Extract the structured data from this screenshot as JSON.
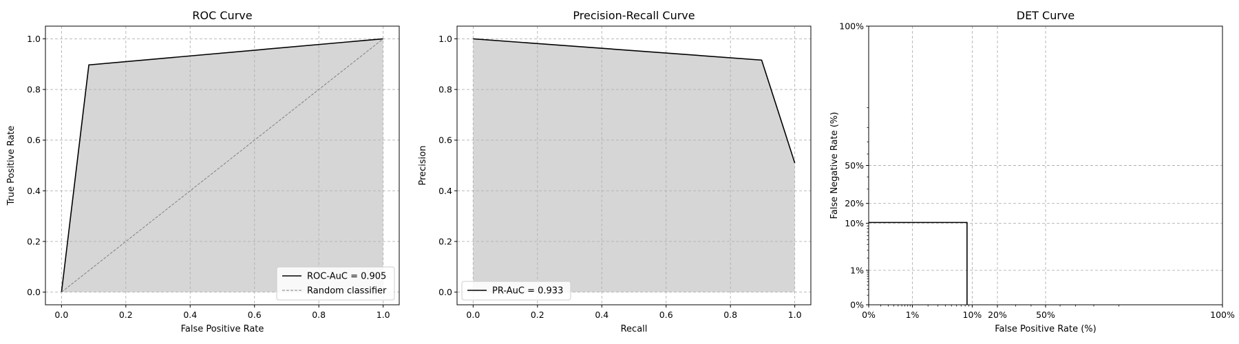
{
  "chart_data": [
    {
      "type": "line",
      "title": "ROC Curve",
      "xlabel": "False Positive Rate",
      "ylabel": "True Positive Rate",
      "xlim": [
        -0.05,
        1.05
      ],
      "ylim": [
        -0.05,
        1.05
      ],
      "xticks": [
        0.0,
        0.2,
        0.4,
        0.6,
        0.8,
        1.0
      ],
      "yticks": [
        0.0,
        0.2,
        0.4,
        0.6,
        0.8,
        1.0
      ],
      "xticklabels": [
        "0.0",
        "0.2",
        "0.4",
        "0.6",
        "0.8",
        "1.0"
      ],
      "yticklabels": [
        "0.0",
        "0.2",
        "0.4",
        "0.6",
        "0.8",
        "1.0"
      ],
      "grid": true,
      "legend_position": "lower-right",
      "fill_under": true,
      "series": [
        {
          "name": "ROC-AuC = 0.905",
          "style": "solid",
          "color": "#000000",
          "x": [
            0.0,
            0.085,
            1.0
          ],
          "y": [
            0.0,
            0.897,
            1.0
          ]
        },
        {
          "name": "Random classifier",
          "style": "dashed",
          "color": "#808080",
          "x": [
            0.0,
            1.0
          ],
          "y": [
            0.0,
            1.0
          ]
        }
      ]
    },
    {
      "type": "line",
      "title": "Precision-Recall Curve",
      "xlabel": "Recall",
      "ylabel": "Precision",
      "xlim": [
        -0.05,
        1.05
      ],
      "ylim": [
        -0.05,
        1.05
      ],
      "xticks": [
        0.0,
        0.2,
        0.4,
        0.6,
        0.8,
        1.0
      ],
      "yticks": [
        0.0,
        0.2,
        0.4,
        0.6,
        0.8,
        1.0
      ],
      "xticklabels": [
        "0.0",
        "0.2",
        "0.4",
        "0.6",
        "0.8",
        "1.0"
      ],
      "yticklabels": [
        "0.0",
        "0.2",
        "0.4",
        "0.6",
        "0.8",
        "1.0"
      ],
      "grid": true,
      "legend_position": "lower-left",
      "fill_under": true,
      "series": [
        {
          "name": "PR-AuC = 0.933",
          "style": "solid",
          "color": "#000000",
          "x": [
            0.0,
            0.897,
            1.0
          ],
          "y": [
            1.0,
            0.916,
            0.51
          ]
        }
      ]
    },
    {
      "type": "line",
      "title": "DET Curve",
      "xlabel": "False Positive Rate (%)",
      "ylabel": "False Negative Rate (%)",
      "scale": "normal-deviate",
      "xlim": [
        0.001,
        0.999
      ],
      "ylim": [
        0.001,
        0.999
      ],
      "xticks": [
        0.001,
        0.01,
        0.1,
        0.2,
        0.5,
        0.999
      ],
      "yticks": [
        0.001,
        0.01,
        0.1,
        0.2,
        0.5,
        0.999
      ],
      "xticklabels": [
        "0%",
        "1%",
        "10%",
        "20%",
        "50%",
        "100%"
      ],
      "yticklabels": [
        "0%",
        "1%",
        "10%",
        "20%",
        "50%",
        "100%"
      ],
      "grid": true,
      "fill_under": false,
      "series": [
        {
          "style": "solid",
          "color": "#000000",
          "x": [
            0.001,
            0.085,
            0.085
          ],
          "y": [
            0.103,
            0.103,
            0.001
          ]
        }
      ]
    }
  ]
}
